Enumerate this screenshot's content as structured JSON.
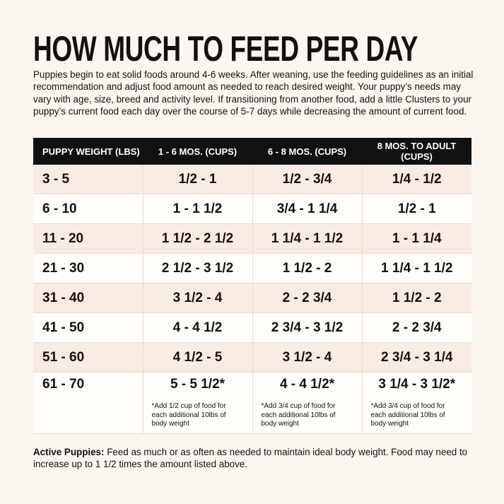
{
  "header": {
    "title": "HOW MUCH TO FEED PER DAY",
    "intro": "Puppies begin to eat solid foods around 4-6 weeks. After weaning, use the feeding guidelines as an initial recommendation and adjust food amount as needed to reach desired weight. Your puppy’s needs may vary with age, size, breed and activity level. If transitioning from another food, add a little Clusters to your puppy’s current food each day over the course of 5-7 days while decreasing the amount of current food."
  },
  "table": {
    "columns": [
      "PUPPY WEIGHT (LBS)",
      "1 - 6 MOS. (CUPS)",
      "6 - 8 MOS. (CUPS)",
      "8 MOS. TO ADULT (CUPS)"
    ],
    "rows": [
      [
        "3 - 5",
        "1/2 - 1",
        "1/2 - 3/4",
        "1/4 - 1/2"
      ],
      [
        "6 - 10",
        "1 - 1 1/2",
        "3/4 - 1 1/4",
        "1/2 - 1"
      ],
      [
        "11 - 20",
        "1 1/2 - 2 1/2",
        "1 1/4 - 1 1/2",
        "1 - 1 1/4"
      ],
      [
        "21 - 30",
        "2 1/2 - 3 1/2",
        "1 1/2 - 2",
        "1 1/4 - 1 1/2"
      ],
      [
        "31 - 40",
        "3 1/2 - 4",
        "2 - 2 3/4",
        "1 1/2 - 2"
      ],
      [
        "41 - 50",
        "4 - 4 1/2",
        "2 3/4 - 3 1/2",
        "2 - 2 3/4"
      ],
      [
        "51 - 60",
        "4 1/2 - 5",
        "3 1/2 - 4",
        "2 3/4 - 3 1/4"
      ],
      [
        "61 - 70",
        "5 - 5 1/2*",
        "4 - 4 1/2*",
        "3 1/4 - 3 1/2*"
      ]
    ],
    "notes": [
      "*Add 1/2 cup of food for each additional 10lbs of body weight",
      "*Add 3/4 cup of food for each additional 10lbs of body weight",
      "*Add 3/4 cup of food for each additional 10lbs of body weight"
    ]
  },
  "footer": {
    "label": "Active Puppies:",
    "text": "Feed as much or as often as needed to maintain ideal body weight. Food may need to increase up to 1 1/2 times the amount listed above."
  }
}
